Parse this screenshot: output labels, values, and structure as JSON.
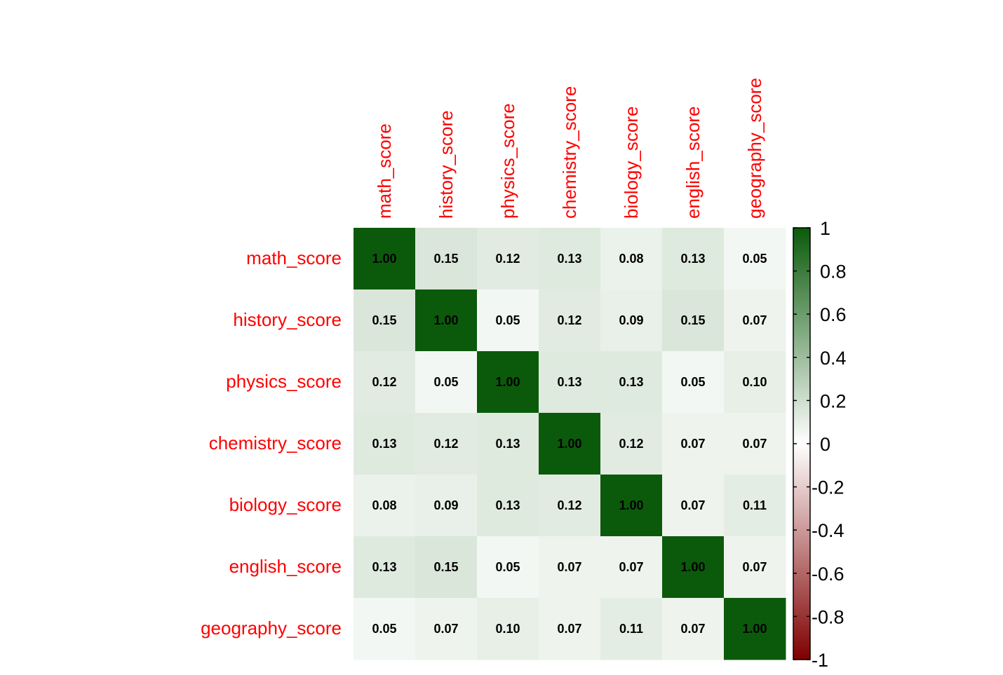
{
  "chart_data": {
    "type": "heatmap",
    "variables": [
      "math_score",
      "history_score",
      "physics_score",
      "chemistry_score",
      "biology_score",
      "english_score",
      "geography_score"
    ],
    "matrix": [
      [
        "1.00",
        "0.15",
        "0.12",
        "0.13",
        "0.08",
        "0.13",
        "0.05"
      ],
      [
        "0.15",
        "1.00",
        "0.05",
        "0.12",
        "0.09",
        "0.15",
        "0.07"
      ],
      [
        "0.12",
        "0.05",
        "1.00",
        "0.13",
        "0.13",
        "0.05",
        "0.10"
      ],
      [
        "0.13",
        "0.12",
        "0.13",
        "1.00",
        "0.12",
        "0.07",
        "0.07"
      ],
      [
        "0.08",
        "0.09",
        "0.13",
        "0.12",
        "1.00",
        "0.07",
        "0.11"
      ],
      [
        "0.13",
        "0.15",
        "0.05",
        "0.07",
        "0.07",
        "1.00",
        "0.07"
      ],
      [
        "0.05",
        "0.07",
        "0.10",
        "0.07",
        "0.11",
        "0.07",
        "1.00"
      ]
    ],
    "color_scale": {
      "range": [
        -1,
        1
      ],
      "ticks": [
        "1",
        "0.8",
        "0.6",
        "0.4",
        "0.2",
        "0",
        "-0.2",
        "-0.4",
        "-0.6",
        "-0.8",
        "-1"
      ],
      "low_color": "#7f0000",
      "mid_color": "#ffffff",
      "high_color": "#0b5a0b"
    },
    "label_color": "#ff0000",
    "legend_position": "right",
    "grid": false
  }
}
